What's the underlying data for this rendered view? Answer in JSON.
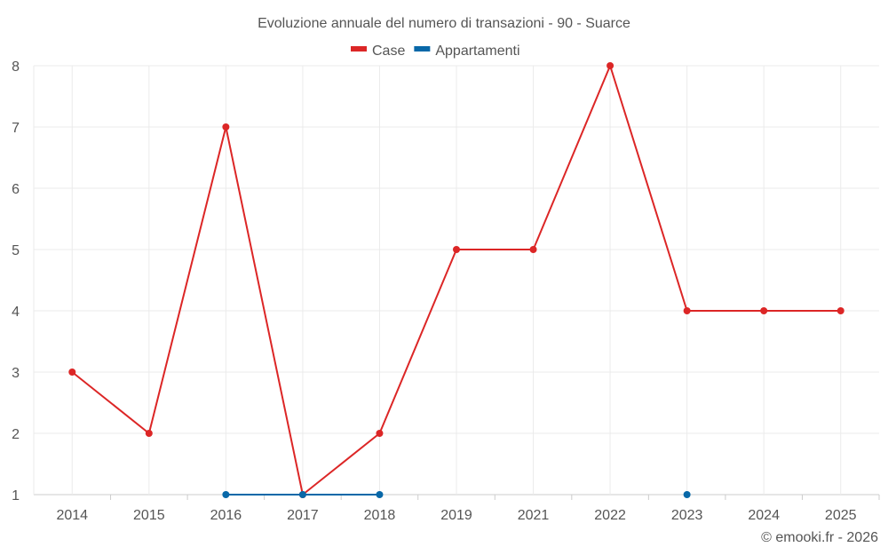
{
  "chart_data": {
    "type": "line",
    "title": "Evoluzione annuale del numero di transazioni - 90 - Suarce",
    "categories": [
      "2014",
      "2015",
      "2016",
      "2017",
      "2018",
      "2019",
      "2021",
      "2022",
      "2023",
      "2024",
      "2025"
    ],
    "series": [
      {
        "name": "Case",
        "color": "#dc2626",
        "values": [
          3,
          2,
          7,
          1,
          2,
          5,
          5,
          8,
          4,
          4,
          4
        ]
      },
      {
        "name": "Appartamenti",
        "color": "#0868a8",
        "values": [
          null,
          null,
          1,
          1,
          1,
          null,
          null,
          null,
          1,
          null,
          null
        ]
      }
    ],
    "ylim": [
      1,
      8
    ],
    "yticks": [
      1,
      2,
      3,
      4,
      5,
      6,
      7,
      8
    ],
    "grid": true,
    "legend": "top-center",
    "xlabel": "",
    "ylabel": ""
  },
  "credit": "© emooki.fr - 2026"
}
